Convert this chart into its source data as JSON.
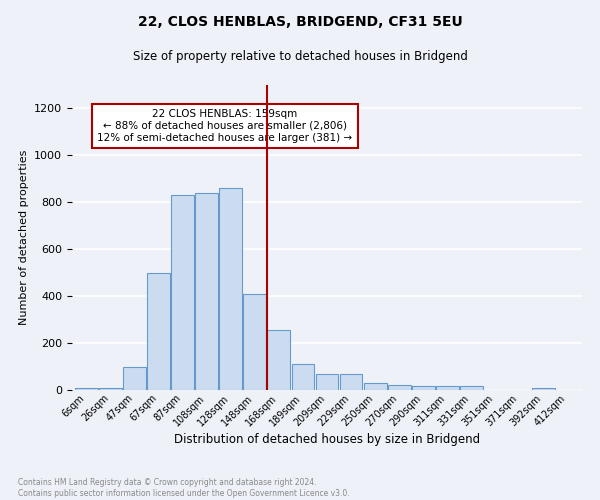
{
  "title": "22, CLOS HENBLAS, BRIDGEND, CF31 5EU",
  "subtitle": "Size of property relative to detached houses in Bridgend",
  "xlabel": "Distribution of detached houses by size in Bridgend",
  "ylabel": "Number of detached properties",
  "bar_labels": [
    "6sqm",
    "26sqm",
    "47sqm",
    "67sqm",
    "87sqm",
    "108sqm",
    "128sqm",
    "148sqm",
    "168sqm",
    "189sqm",
    "209sqm",
    "229sqm",
    "250sqm",
    "270sqm",
    "290sqm",
    "311sqm",
    "331sqm",
    "351sqm",
    "371sqm",
    "392sqm",
    "412sqm"
  ],
  "bar_values": [
    10,
    10,
    100,
    500,
    830,
    840,
    860,
    410,
    255,
    110,
    70,
    70,
    30,
    20,
    15,
    15,
    15,
    0,
    0,
    10,
    0
  ],
  "bar_color": "#ccdcf0",
  "bar_edge_color": "#6699cc",
  "vline_color": "#aa0000",
  "annotation_text": "22 CLOS HENBLAS: 159sqm\n← 88% of detached houses are smaller (2,806)\n12% of semi-detached houses are larger (381) →",
  "annotation_box_color": "white",
  "annotation_box_edge": "#aa0000",
  "ylim": [
    0,
    1300
  ],
  "yticks": [
    0,
    200,
    400,
    600,
    800,
    1000,
    1200
  ],
  "footer_text": "Contains HM Land Registry data © Crown copyright and database right 2024.\nContains public sector information licensed under the Open Government Licence v3.0.",
  "bg_color": "#eef2f8",
  "grid_color": "white"
}
